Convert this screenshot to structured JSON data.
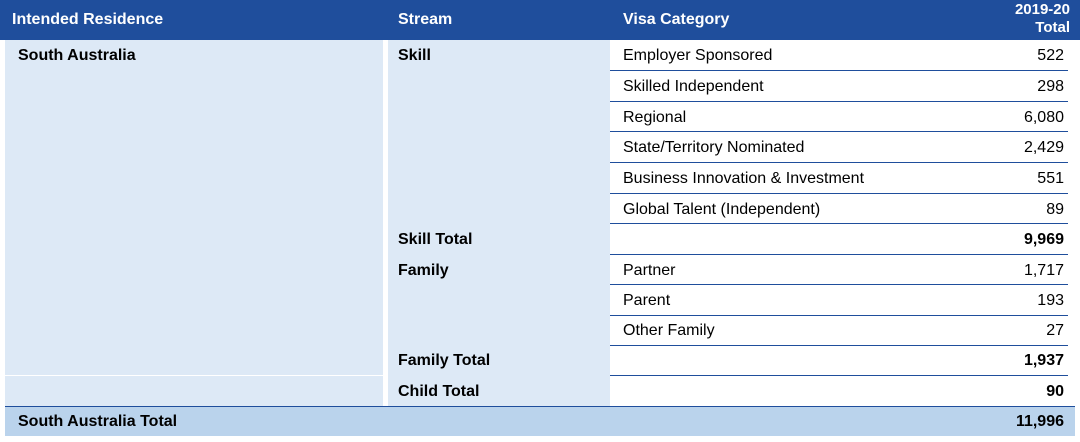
{
  "header": {
    "intended_residence": "Intended Residence",
    "stream": "Stream",
    "visa_category": "Visa Category",
    "total_line1": "2019-20",
    "total_line2": "Total"
  },
  "residence": "South Australia",
  "skill": {
    "label": "Skill",
    "rows": [
      {
        "category": "Employer Sponsored",
        "total": "522"
      },
      {
        "category": "Skilled Independent",
        "total": "298"
      },
      {
        "category": "Regional",
        "total": "6,080"
      },
      {
        "category": "State/Territory Nominated",
        "total": "2,429"
      },
      {
        "category": "Business Innovation & Investment",
        "total": "551"
      },
      {
        "category": "Global Talent (Independent)",
        "total": "89"
      }
    ],
    "total_label": "Skill Total",
    "total_value": "9,969"
  },
  "family": {
    "label": "Family",
    "rows": [
      {
        "category": "Partner",
        "total": "1,717"
      },
      {
        "category": "Parent",
        "total": "193"
      },
      {
        "category": "Other Family",
        "total": "27"
      }
    ],
    "total_label": "Family Total",
    "total_value": "1,937"
  },
  "child": {
    "total_label": "Child Total",
    "total_value": "90"
  },
  "grand_total": {
    "label": "South Australia Total",
    "value": "11,996"
  },
  "colors": {
    "header_bg": "#1f4e9c",
    "cell_bg": "#dde9f6",
    "footer_bg": "#bad3ec"
  }
}
